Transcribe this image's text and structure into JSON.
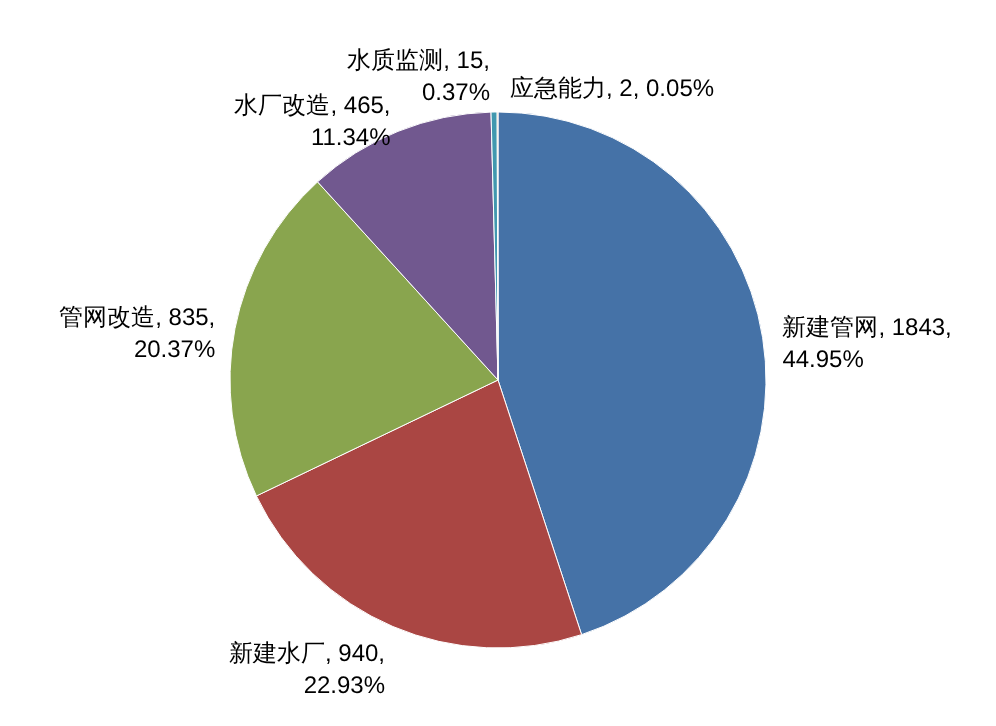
{
  "chart_data": {
    "type": "pie",
    "categories": [
      "新建管网",
      "新建水厂",
      "管网改造",
      "水厂改造",
      "水质监测",
      "应急能力"
    ],
    "values": [
      1843,
      940,
      835,
      465,
      15,
      2
    ],
    "value_labels": [
      "1843, 44.95%",
      "940, 22.93%",
      "835, 20.37%",
      "465, 11.34%",
      "15, 0.37%",
      "2, 0.05%"
    ],
    "colors": [
      "#4572a7",
      "#aa4643",
      "#89a54e",
      "#71588f",
      "#4198af",
      "#db843d"
    ],
    "legend": false
  }
}
